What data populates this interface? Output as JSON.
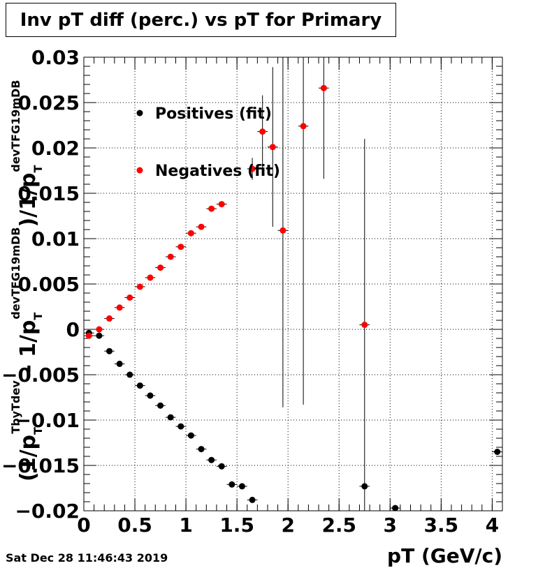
{
  "title": "Inv pT diff (perc.) vs pT for Primary",
  "datestamp": "Sat Dec 28 11:46:43 2019",
  "chart_data": {
    "type": "scatter",
    "xlabel": "pT (GeV/c)",
    "ylabel_parts": {
      "open_paren": "(",
      "inv": "1/p",
      "T": "T",
      "sup1": "TbyTdev",
      "minus": " - ",
      "sup2": "devTFG19mDB",
      "close": ")/1/p",
      "sup3": "devTFG19mDB"
    },
    "xlim": [
      0,
      4.1
    ],
    "ylim": [
      -0.02,
      0.03
    ],
    "x_ticks": [
      0,
      0.5,
      1,
      1.5,
      2,
      2.5,
      3,
      3.5,
      4
    ],
    "x_tick_labels": [
      "0",
      "0.5",
      "1",
      "1.5",
      "2",
      "2.5",
      "3",
      "3.5",
      "4"
    ],
    "y_ticks": [
      -0.02,
      -0.015,
      -0.01,
      -0.005,
      0,
      0.005,
      0.01,
      0.015,
      0.02,
      0.025,
      0.03
    ],
    "y_tick_labels": [
      "−0.02",
      "−0.015",
      "−0.01",
      "−0.005",
      "0",
      "0.005",
      "0.01",
      "0.015",
      "0.02",
      "0.025",
      "0.03"
    ],
    "grid": true,
    "legend_position": "top-left-inside",
    "series": [
      {
        "name": "Positives (fit)",
        "color": "#000000",
        "points": [
          {
            "x": 0.05,
            "y": -0.0004,
            "ey": 0.0002
          },
          {
            "x": 0.15,
            "y": -0.0007,
            "ey": 0.0001
          },
          {
            "x": 0.25,
            "y": -0.0024,
            "ey": 0.0001
          },
          {
            "x": 0.35,
            "y": -0.0038,
            "ey": 0.0001
          },
          {
            "x": 0.45,
            "y": -0.005,
            "ey": 0.0001
          },
          {
            "x": 0.55,
            "y": -0.0062,
            "ey": 0.0001
          },
          {
            "x": 0.65,
            "y": -0.0073,
            "ey": 0.0001
          },
          {
            "x": 0.75,
            "y": -0.0084,
            "ey": 0.0001
          },
          {
            "x": 0.85,
            "y": -0.0097,
            "ey": 0.0001
          },
          {
            "x": 0.95,
            "y": -0.0107,
            "ey": 0.0001
          },
          {
            "x": 1.05,
            "y": -0.0117,
            "ey": 0.0001
          },
          {
            "x": 1.15,
            "y": -0.0132,
            "ey": 0.0001
          },
          {
            "x": 1.25,
            "y": -0.0144,
            "ey": 0.0001
          },
          {
            "x": 1.35,
            "y": -0.0151,
            "ey": 0.0001
          },
          {
            "x": 1.45,
            "y": -0.0171,
            "ey": 0.0001
          },
          {
            "x": 1.55,
            "y": -0.0173,
            "ey": 0.0001
          },
          {
            "x": 1.65,
            "y": -0.0188,
            "ey": 0.0001
          },
          {
            "x": 2.75,
            "y": -0.0173,
            "ey": 0.0001
          },
          {
            "x": 3.05,
            "y": -0.0197,
            "ey": 0.0001
          },
          {
            "x": 4.05,
            "y": -0.0135,
            "ey": 0.0001
          }
        ]
      },
      {
        "name": "Negatives (fit)",
        "color": "#ff0000",
        "points": [
          {
            "x": 0.05,
            "y": -0.0007,
            "ey": 0.0002
          },
          {
            "x": 0.15,
            "y": 0.0,
            "ey": 0.0001
          },
          {
            "x": 0.25,
            "y": 0.0012,
            "ey": 0.0001
          },
          {
            "x": 0.35,
            "y": 0.0024,
            "ey": 0.0001
          },
          {
            "x": 0.45,
            "y": 0.0035,
            "ey": 0.0001
          },
          {
            "x": 0.55,
            "y": 0.0047,
            "ey": 0.0001
          },
          {
            "x": 0.65,
            "y": 0.0057,
            "ey": 0.0001
          },
          {
            "x": 0.75,
            "y": 0.0068,
            "ey": 0.0001
          },
          {
            "x": 0.85,
            "y": 0.008,
            "ey": 0.0001
          },
          {
            "x": 0.95,
            "y": 0.0091,
            "ey": 0.0001
          },
          {
            "x": 1.05,
            "y": 0.0106,
            "ey": 0.0001
          },
          {
            "x": 1.15,
            "y": 0.0113,
            "ey": 0.0001
          },
          {
            "x": 1.25,
            "y": 0.0133,
            "ey": 0.0001
          },
          {
            "x": 1.35,
            "y": 0.0138,
            "ey": 0.0001
          },
          {
            "x": 1.65,
            "y": 0.0177,
            "ey": 0.0012
          },
          {
            "x": 1.75,
            "y": 0.0218,
            "ey": 0.004
          },
          {
            "x": 1.85,
            "y": 0.0201,
            "ey": 0.0088
          },
          {
            "x": 1.95,
            "y": 0.0109,
            "ey": 0.0195
          },
          {
            "x": 2.15,
            "y": 0.0224,
            "ey": 0.0307
          },
          {
            "x": 2.35,
            "y": 0.0266,
            "ey": 0.01
          },
          {
            "x": 2.75,
            "y": 0.0005,
            "ey": 0.0205
          }
        ]
      }
    ]
  }
}
